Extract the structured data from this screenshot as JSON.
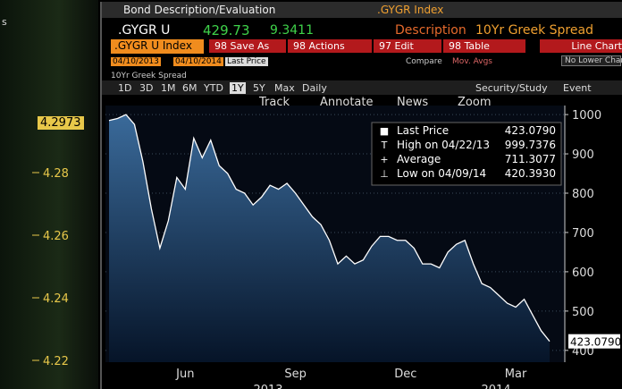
{
  "left_panel": {
    "header": "s",
    "current_value": "4.2973",
    "ticks": [
      "4.28",
      "4.26",
      "4.24",
      "4.22"
    ]
  },
  "window": {
    "title": "Bond Description/Evaluation",
    "ticker": ".GYGR Index",
    "security": ".GYGR U",
    "price": "429.73",
    "change": "9.3411",
    "description_label": "Description",
    "description": "10Yr Greek Spread",
    "security_box": ".GYGR U Index",
    "buttons": [
      "98 Save As",
      "98 Actions",
      "97 Edit",
      "98 Table"
    ],
    "chart_type": "Line Chart",
    "start_date": "04/10/2013",
    "end_date": "04/10/2014",
    "field": "Last Price",
    "compare": "Compare",
    "mov_avgs": "Mov. Avgs",
    "lower_chart": "No Lower Chart",
    "chart_label": "10Yr Greek Spread",
    "periods": [
      "1D",
      "3D",
      "1M",
      "6M",
      "YTD",
      "1Y",
      "5Y",
      "Max",
      "Daily"
    ],
    "study": "Security/Study",
    "event": "Event",
    "tools": [
      "Track",
      "Annotate",
      "News",
      "Zoom"
    ],
    "stats": [
      {
        "name": "Last Price",
        "value": "423.0790"
      },
      {
        "name": "High on 04/22/13",
        "value": "999.7376"
      },
      {
        "name": "Average",
        "value": "711.3077"
      },
      {
        "name": "Low on 04/09/14",
        "value": "420.3930"
      }
    ],
    "last_tag": "423.0790"
  },
  "chart_data": {
    "type": "area",
    "categories": [
      null,
      null,
      null,
      null,
      null,
      null,
      null,
      null,
      null,
      "Jun",
      null,
      null,
      null,
      null,
      null,
      null,
      null,
      null,
      null,
      null,
      null,
      null,
      "Sep",
      null,
      null,
      null,
      null,
      null,
      null,
      null,
      null,
      null,
      null,
      null,
      null,
      "Dec",
      null,
      null,
      null,
      null,
      null,
      null,
      null,
      null,
      null,
      null,
      null,
      null,
      "Mar",
      null,
      null,
      null,
      null
    ],
    "x_group_labels": [
      "2013",
      "2014"
    ],
    "values": [
      985,
      990,
      1000,
      975,
      880,
      760,
      660,
      730,
      840,
      810,
      940,
      890,
      935,
      870,
      850,
      810,
      800,
      770,
      790,
      820,
      810,
      825,
      800,
      770,
      740,
      720,
      680,
      620,
      640,
      620,
      630,
      665,
      690,
      690,
      680,
      680,
      660,
      620,
      620,
      610,
      650,
      670,
      680,
      620,
      570,
      560,
      540,
      520,
      510,
      530,
      490,
      450,
      423.079
    ],
    "color": "#ffffff",
    "ylim": [
      370,
      1023
    ],
    "yticks": [
      400,
      500,
      600,
      700,
      800,
      900,
      1000
    ],
    "grid": true
  }
}
